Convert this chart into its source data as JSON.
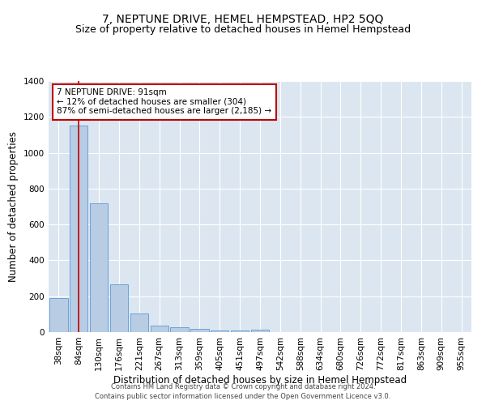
{
  "title": "7, NEPTUNE DRIVE, HEMEL HEMPSTEAD, HP2 5QQ",
  "subtitle": "Size of property relative to detached houses in Hemel Hempstead",
  "xlabel": "Distribution of detached houses by size in Hemel Hempstead",
  "ylabel": "Number of detached properties",
  "footnote1": "Contains HM Land Registry data © Crown copyright and database right 2024.",
  "footnote2": "Contains public sector information licensed under the Open Government Licence v3.0.",
  "bin_labels": [
    "38sqm",
    "84sqm",
    "130sqm",
    "176sqm",
    "221sqm",
    "267sqm",
    "313sqm",
    "359sqm",
    "405sqm",
    "451sqm",
    "497sqm",
    "542sqm",
    "588sqm",
    "634sqm",
    "680sqm",
    "726sqm",
    "772sqm",
    "817sqm",
    "863sqm",
    "909sqm",
    "955sqm"
  ],
  "bar_values": [
    190,
    1150,
    720,
    265,
    105,
    35,
    28,
    20,
    10,
    8,
    12,
    0,
    0,
    0,
    0,
    0,
    0,
    0,
    0,
    0,
    0
  ],
  "bar_color": "#b8cce4",
  "bar_edge_color": "#5b9bd5",
  "vline_x": 1.0,
  "vline_color": "#c00000",
  "annotation_text": "7 NEPTUNE DRIVE: 91sqm\n← 12% of detached houses are smaller (304)\n87% of semi-detached houses are larger (2,185) →",
  "annotation_box_color": "white",
  "annotation_box_edge": "#c00000",
  "ylim": [
    0,
    1400
  ],
  "yticks": [
    0,
    200,
    400,
    600,
    800,
    1000,
    1200,
    1400
  ],
  "plot_bg_color": "#dce6f1",
  "title_fontsize": 10,
  "subtitle_fontsize": 9,
  "xlabel_fontsize": 8.5,
  "ylabel_fontsize": 8.5,
  "tick_fontsize": 7.5,
  "annot_fontsize": 7.5,
  "footnote_fontsize": 6
}
